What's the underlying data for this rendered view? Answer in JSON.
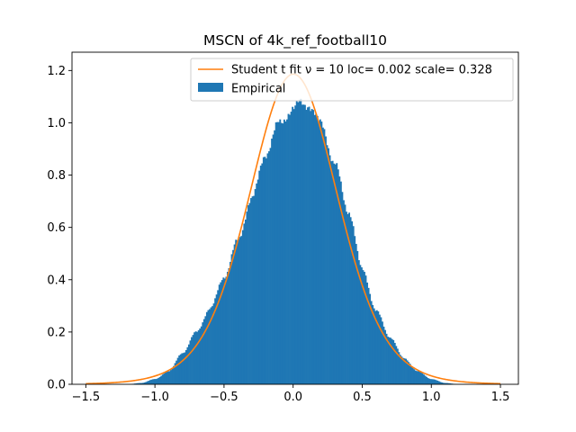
{
  "chart_data": {
    "type": "histogram",
    "title": "MSCN of 4k_ref_football10",
    "xlabel": "",
    "ylabel": "",
    "xlim": [
      -1.6,
      1.63
    ],
    "ylim": [
      0,
      1.27
    ],
    "x_ticks": [
      -1.5,
      -1.0,
      -0.5,
      0.0,
      0.5,
      1.0,
      1.5
    ],
    "x_tick_labels": [
      "−1.5",
      "−1.0",
      "−0.5",
      "0.0",
      "0.5",
      "1.0",
      "1.5"
    ],
    "y_ticks": [
      0.0,
      0.2,
      0.4,
      0.6,
      0.8,
      1.0,
      1.2
    ],
    "y_tick_labels": [
      "0.0",
      "0.2",
      "0.4",
      "0.6",
      "0.8",
      "1.0",
      "1.2"
    ],
    "grid": false,
    "legend_position": "top-right",
    "series": [
      {
        "name": "Student t fit ν = 10 loc= 0.002 scale= 0.328",
        "type": "line",
        "color": "#ff7f0e",
        "distribution": {
          "family": "student-t",
          "df": 10,
          "loc": 0.002,
          "scale": 0.328
        },
        "x_range": [
          -1.5,
          1.5
        ]
      },
      {
        "name": "Empirical",
        "type": "bar",
        "color": "#1f77b4",
        "bin_range": [
          -1.5,
          1.5
        ],
        "bin_count": 300,
        "profile": [
          [
            -1.5,
            0.0
          ],
          [
            -1.2,
            0.0
          ],
          [
            -1.1,
            0.005
          ],
          [
            -1.0,
            0.02
          ],
          [
            -0.9,
            0.05
          ],
          [
            -0.8,
            0.12
          ],
          [
            -0.7,
            0.2
          ],
          [
            -0.6,
            0.29
          ],
          [
            -0.5,
            0.41
          ],
          [
            -0.4,
            0.55
          ],
          [
            -0.3,
            0.71
          ],
          [
            -0.2,
            0.88
          ],
          [
            -0.1,
            1.0
          ],
          [
            0.0,
            1.05
          ],
          [
            0.05,
            1.08
          ],
          [
            0.1,
            1.07
          ],
          [
            0.2,
            1.0
          ],
          [
            0.3,
            0.84
          ],
          [
            0.4,
            0.66
          ],
          [
            0.5,
            0.44
          ],
          [
            0.6,
            0.28
          ],
          [
            0.7,
            0.18
          ],
          [
            0.8,
            0.1
          ],
          [
            0.9,
            0.05
          ],
          [
            1.0,
            0.02
          ],
          [
            1.1,
            0.005
          ],
          [
            1.2,
            0.0
          ],
          [
            1.5,
            0.0
          ]
        ]
      }
    ]
  }
}
